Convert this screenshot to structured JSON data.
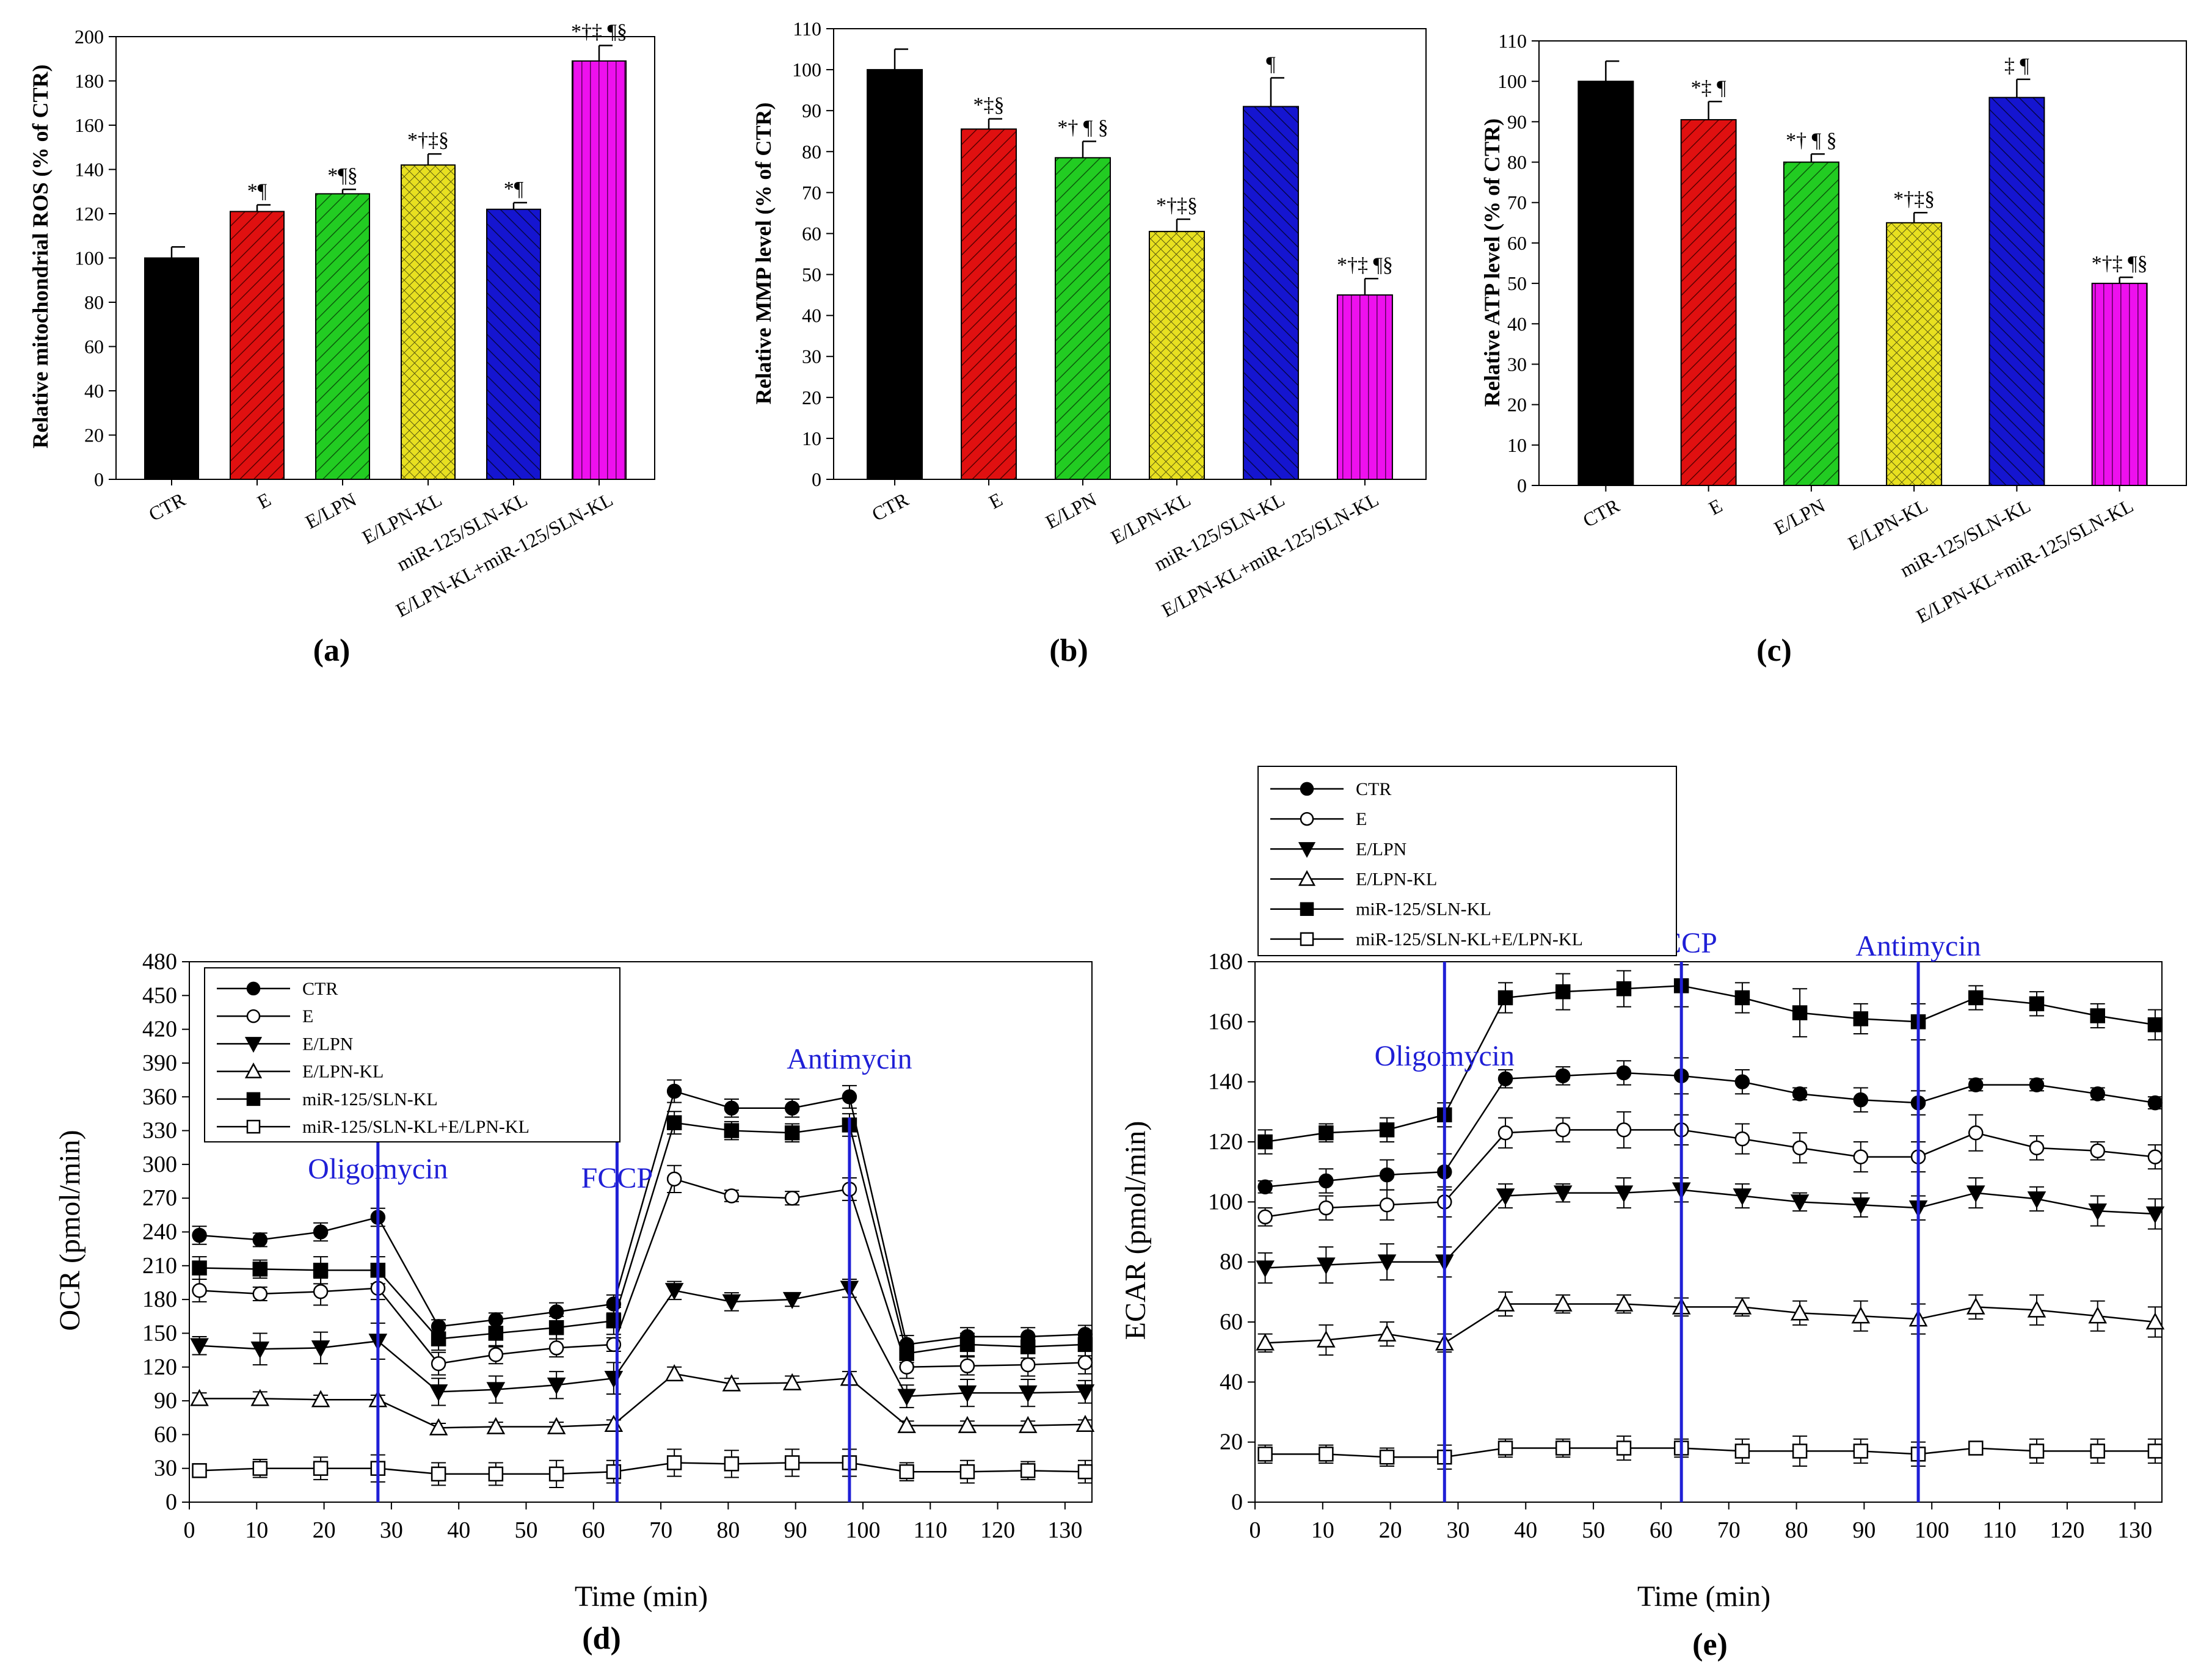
{
  "chart_data": [
    {
      "type": "bar",
      "panel_label": "(a)",
      "ylabel": "Relative mitochondrial ROS (% of CTR)",
      "ylim": [
        0,
        200
      ],
      "yticks": [
        0,
        20,
        40,
        60,
        80,
        100,
        120,
        140,
        160,
        180,
        200
      ],
      "categories": [
        "CTR",
        "E",
        "E/LPN",
        "E/LPN-KL",
        "miR-125/SLN-KL",
        "E/LPN-KL+miR-125/SLN-KL"
      ],
      "values": [
        100,
        121,
        129,
        142,
        122,
        189
      ],
      "errors": [
        5,
        3,
        2,
        5,
        3,
        7
      ],
      "annotations": [
        "",
        "*¶",
        "*¶§",
        "*†‡§",
        "*¶",
        "*†‡ ¶§"
      ],
      "colors": [
        "#000000",
        "#e01010",
        "#22cc22",
        "#e8e020",
        "#1515d0",
        "#ee10ee"
      ]
    },
    {
      "type": "bar",
      "panel_label": "(b)",
      "ylabel": "Relative MMP level (% of CTR)",
      "ylim": [
        0,
        110
      ],
      "yticks": [
        0,
        10,
        20,
        30,
        40,
        50,
        60,
        70,
        80,
        90,
        100,
        110
      ],
      "categories": [
        "CTR",
        "E",
        "E/LPN",
        "E/LPN-KL",
        "miR-125/SLN-KL",
        "E/LPN-KL+miR-125/SLN-KL"
      ],
      "values": [
        100,
        85.5,
        78.5,
        60.5,
        91,
        45
      ],
      "errors": [
        5,
        2.5,
        4,
        3,
        7,
        4
      ],
      "annotations": [
        "",
        "*‡§",
        "*† ¶ §",
        "*†‡§",
        "¶",
        "*†‡ ¶§"
      ],
      "colors": [
        "#000000",
        "#e01010",
        "#22cc22",
        "#e8e020",
        "#1515d0",
        "#ee10ee"
      ]
    },
    {
      "type": "bar",
      "panel_label": "(c)",
      "ylabel": "Relative ATP level (% of CTR)",
      "ylim": [
        0,
        110
      ],
      "yticks": [
        0,
        10,
        20,
        30,
        40,
        50,
        60,
        70,
        80,
        90,
        100,
        110
      ],
      "categories": [
        "CTR",
        "E",
        "E/LPN",
        "E/LPN-KL",
        "miR-125/SLN-KL",
        "E/LPN-KL+miR-125/SLN-KL"
      ],
      "values": [
        100,
        90.5,
        80,
        65,
        96,
        50
      ],
      "errors": [
        5,
        4.5,
        2,
        2.5,
        4.5,
        1.5
      ],
      "annotations": [
        "",
        "*‡ ¶",
        "*† ¶ §",
        "*†‡§",
        "‡ ¶",
        "*†‡ ¶§"
      ],
      "colors": [
        "#000000",
        "#e01010",
        "#22cc22",
        "#e8e020",
        "#1515d0",
        "#ee10ee"
      ]
    },
    {
      "type": "line",
      "panel_label": "(d)",
      "xlabel": "Time (min)",
      "ylabel": "OCR (pmol/min)",
      "xlim": [
        0,
        134
      ],
      "ylim": [
        0,
        480
      ],
      "xticks": [
        0,
        10,
        20,
        30,
        40,
        50,
        60,
        70,
        80,
        90,
        100,
        110,
        120,
        130
      ],
      "yticks": [
        0,
        30,
        60,
        90,
        120,
        150,
        180,
        210,
        240,
        270,
        300,
        330,
        360,
        390,
        420,
        450,
        480
      ],
      "legend_position": "top-left",
      "events": [
        {
          "label": "Oligomycin",
          "x": 28
        },
        {
          "label": "FCCP",
          "x": 63.5
        },
        {
          "label": "Antimycin",
          "x": 98
        }
      ],
      "x": [
        1.5,
        10.5,
        19.5,
        28,
        37,
        45.5,
        54.5,
        63,
        72,
        80.5,
        89.5,
        98,
        106.5,
        115.5,
        124.5,
        133
      ],
      "series": [
        {
          "name": "CTR",
          "marker": "filled-circle",
          "values": [
            237,
            233,
            240,
            253,
            156,
            162,
            169,
            176,
            365,
            350,
            350,
            360,
            140,
            147,
            147,
            149
          ],
          "errors": [
            8,
            6,
            8,
            8,
            6,
            6,
            8,
            8,
            10,
            8,
            8,
            10,
            8,
            8,
            8,
            8
          ]
        },
        {
          "name": "E",
          "marker": "open-circle",
          "values": [
            188,
            185,
            187,
            190,
            123,
            131,
            137,
            140,
            287,
            272,
            270,
            278,
            120,
            121,
            122,
            124
          ],
          "errors": [
            10,
            6,
            12,
            10,
            10,
            8,
            8,
            6,
            12,
            5,
            6,
            10,
            10,
            8,
            10,
            10
          ]
        },
        {
          "name": "E/LPN",
          "marker": "filled-triangle-down",
          "values": [
            139,
            136,
            137,
            143,
            98,
            100,
            104,
            110,
            188,
            178,
            180,
            190,
            94,
            97,
            97,
            98
          ],
          "errors": [
            8,
            14,
            14,
            16,
            12,
            12,
            12,
            14,
            8,
            8,
            6,
            8,
            10,
            12,
            12,
            10
          ]
        },
        {
          "name": "E/LPN-KL",
          "marker": "open-triangle-up",
          "values": [
            92,
            92,
            91,
            91,
            66,
            67,
            67,
            69,
            114,
            105,
            106,
            110,
            68,
            68,
            68,
            69
          ],
          "errors": [
            5,
            6,
            4,
            4,
            4,
            4,
            4,
            4,
            6,
            5,
            6,
            6,
            4,
            4,
            4,
            4
          ]
        },
        {
          "name": "miR-125/SLN-KL",
          "marker": "filled-square",
          "values": [
            208,
            207,
            206,
            206,
            145,
            150,
            155,
            161,
            337,
            330,
            328,
            335,
            132,
            140,
            138,
            140
          ],
          "errors": [
            10,
            8,
            12,
            12,
            10,
            12,
            10,
            12,
            10,
            8,
            8,
            10,
            8,
            10,
            10,
            10
          ]
        },
        {
          "name": "miR-125/SLN-KL+E/LPN-KL",
          "marker": "open-square",
          "values": [
            28,
            30,
            30,
            30,
            25,
            25,
            25,
            27,
            35,
            34,
            35,
            35,
            27,
            27,
            28,
            27
          ],
          "errors": [
            6,
            8,
            10,
            12,
            10,
            10,
            12,
            10,
            12,
            12,
            12,
            12,
            8,
            10,
            8,
            10
          ]
        }
      ]
    },
    {
      "type": "line",
      "panel_label": "(e)",
      "xlabel": "Time (min)",
      "ylabel": "ECAR (pmol/min)",
      "xlim": [
        0,
        134
      ],
      "ylim": [
        0,
        180
      ],
      "xticks": [
        0,
        10,
        20,
        30,
        40,
        50,
        60,
        70,
        80,
        90,
        100,
        110,
        120,
        130
      ],
      "yticks": [
        0,
        20,
        40,
        60,
        80,
        100,
        120,
        140,
        160,
        180
      ],
      "legend_position": "top-left (above plot)",
      "events": [
        {
          "label": "Oligomycin",
          "x": 28
        },
        {
          "label": "FCCP",
          "x": 63
        },
        {
          "label": "Antimycin",
          "x": 98
        }
      ],
      "x": [
        1.5,
        10.5,
        19.5,
        28,
        37,
        45.5,
        54.5,
        63,
        72,
        80.5,
        89.5,
        98,
        106.5,
        115.5,
        124.5,
        133
      ],
      "series": [
        {
          "name": "CTR",
          "marker": "filled-circle",
          "values": [
            105,
            107,
            109,
            110,
            141,
            142,
            143,
            142,
            140,
            136,
            134,
            133,
            139,
            139,
            136,
            133
          ],
          "errors": [
            2,
            4,
            5,
            6,
            3,
            3,
            4,
            6,
            4,
            2,
            4,
            4,
            2,
            2,
            2,
            2
          ]
        },
        {
          "name": "E",
          "marker": "open-circle",
          "values": [
            95,
            98,
            99,
            100,
            123,
            124,
            124,
            124,
            121,
            118,
            115,
            115,
            123,
            118,
            117,
            115
          ],
          "errors": [
            3,
            4,
            5,
            5,
            5,
            4,
            6,
            5,
            5,
            5,
            5,
            5,
            6,
            4,
            3,
            4
          ]
        },
        {
          "name": "E/LPN",
          "marker": "filled-triangle-down",
          "values": [
            78,
            79,
            80,
            80,
            102,
            103,
            103,
            104,
            102,
            100,
            99,
            98,
            103,
            101,
            97,
            96
          ],
          "errors": [
            5,
            6,
            6,
            5,
            4,
            3,
            5,
            4,
            4,
            3,
            4,
            4,
            5,
            4,
            5,
            5
          ]
        },
        {
          "name": "E/LPN-KL",
          "marker": "open-triangle-up",
          "values": [
            53,
            54,
            56,
            53,
            66,
            66,
            66,
            65,
            65,
            63,
            62,
            61,
            65,
            64,
            62,
            60
          ],
          "errors": [
            3,
            5,
            4,
            3,
            4,
            3,
            3,
            3,
            3,
            4,
            5,
            5,
            4,
            5,
            5,
            5
          ]
        },
        {
          "name": "miR-125/SLN-KL",
          "marker": "filled-square",
          "values": [
            120,
            123,
            124,
            129,
            168,
            170,
            171,
            172,
            168,
            163,
            161,
            160,
            168,
            166,
            162,
            159
          ],
          "errors": [
            4,
            3,
            4,
            4,
            5,
            6,
            6,
            7,
            5,
            8,
            5,
            6,
            4,
            4,
            4,
            5
          ]
        },
        {
          "name": "miR-125/SLN-KL+E/LPN-KL",
          "marker": "open-square",
          "values": [
            16,
            16,
            15,
            15,
            18,
            18,
            18,
            18,
            17,
            17,
            17,
            16,
            18,
            17,
            17,
            17
          ],
          "errors": [
            3,
            3,
            3,
            4,
            3,
            3,
            4,
            3,
            4,
            5,
            4,
            4,
            2,
            4,
            4,
            4
          ]
        }
      ]
    }
  ]
}
